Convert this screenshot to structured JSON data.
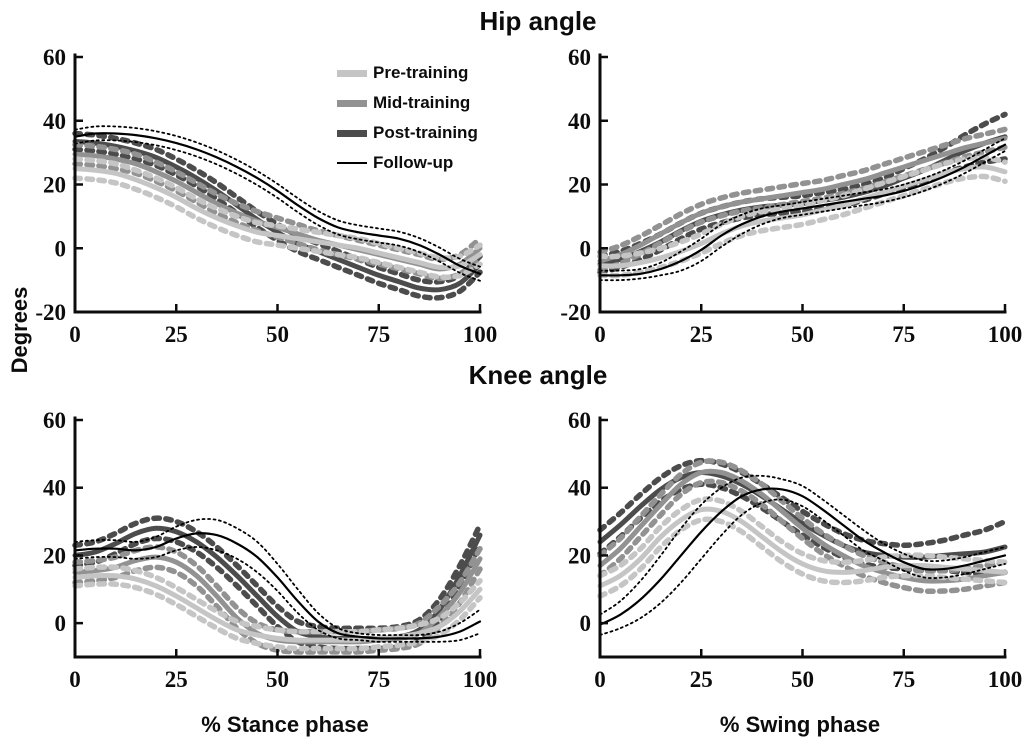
{
  "figure": {
    "hip_title": "Hip angle",
    "knee_title": "Knee angle",
    "ylabel": "Degrees",
    "xlabel_stance": "% Stance phase",
    "xlabel_swing": "% Swing phase",
    "background_color": "#ffffff",
    "axis_color": "#0c0c0c"
  },
  "legend": {
    "items": [
      {
        "label": "Pre-training",
        "color": "#c5c5c5",
        "line_weight": "thick"
      },
      {
        "label": "Mid-training",
        "color": "#929292",
        "line_weight": "thick"
      },
      {
        "label": "Post-training",
        "color": "#4c4c4c",
        "line_weight": "thick"
      },
      {
        "label": "Follow-up",
        "color": "#000000",
        "line_weight": "thin"
      }
    ]
  },
  "chart_data": [
    {
      "id": "hip-stance",
      "type": "line",
      "title": "Hip angle",
      "xlabel": "% Stance phase",
      "ylabel": "Degrees",
      "xlim": [
        0,
        100
      ],
      "ylim": [
        -20,
        60
      ],
      "xticks": [
        0,
        25,
        50,
        75,
        100
      ],
      "yticks": [
        -20,
        0,
        20,
        40,
        60
      ],
      "grid": false,
      "band_meaning": "mean line plus dashed/dotted envelope of plus-minus band degrees",
      "x": [
        0,
        5,
        10,
        15,
        20,
        25,
        30,
        35,
        40,
        45,
        50,
        55,
        60,
        65,
        70,
        75,
        80,
        85,
        90,
        95,
        100
      ],
      "series": [
        {
          "name": "Pre-training",
          "mean": [
            25,
            24.5,
            23.5,
            21.5,
            19,
            16,
            12.5,
            9.5,
            7,
            5,
            4,
            3,
            2,
            1,
            0,
            -1.5,
            -3,
            -4.5,
            -6,
            -5.5,
            -2
          ],
          "band": 3
        },
        {
          "name": "Mid-training",
          "mean": [
            29.5,
            29,
            28,
            26.5,
            24,
            21,
            17.5,
            14,
            11,
            8.5,
            6.5,
            4.5,
            2.5,
            1,
            -0.5,
            -2,
            -3.5,
            -5,
            -6.5,
            -5,
            0
          ],
          "band": 3
        },
        {
          "name": "Post-training",
          "mean": [
            33.5,
            33,
            32,
            30.5,
            28.5,
            25.5,
            22,
            18,
            13.5,
            9,
            5,
            1.5,
            -1,
            -3.5,
            -6,
            -8.5,
            -10.5,
            -12.5,
            -13,
            -11,
            -5
          ],
          "band": 2.5
        },
        {
          "name": "Follow-up",
          "mean": [
            35,
            36,
            36,
            35.5,
            34.5,
            33,
            31,
            28.5,
            25.5,
            22,
            18,
            13.5,
            9.5,
            6.5,
            5,
            4,
            3,
            1,
            -2,
            -5.5,
            -8
          ],
          "band": 2.2
        }
      ]
    },
    {
      "id": "hip-swing",
      "type": "line",
      "title": "Hip angle",
      "xlabel": "% Swing phase",
      "ylabel": "Degrees",
      "xlim": [
        0,
        100
      ],
      "ylim": [
        -20,
        60
      ],
      "xticks": [
        0,
        25,
        50,
        75,
        100
      ],
      "yticks": [
        -20,
        0,
        20,
        40,
        60
      ],
      "grid": false,
      "band_meaning": "mean line plus dashed/dotted envelope of plus-minus band degrees",
      "x": [
        0,
        5,
        10,
        15,
        20,
        25,
        30,
        35,
        40,
        45,
        50,
        55,
        60,
        65,
        70,
        75,
        80,
        85,
        90,
        95,
        100
      ],
      "series": [
        {
          "name": "Pre-training",
          "mean": [
            -5.5,
            -5.5,
            -4.5,
            -3,
            -1,
            1.5,
            4.5,
            7,
            8.5,
            9.5,
            10.5,
            12,
            13.5,
            15.5,
            17.5,
            19.5,
            21.5,
            23.5,
            25,
            25.5,
            24
          ],
          "band": 3
        },
        {
          "name": "Mid-training",
          "mean": [
            -4,
            -2,
            1,
            4.5,
            8,
            11,
            13,
            14.5,
            15.5,
            16.5,
            17.5,
            18.5,
            20,
            21.5,
            23.5,
            25.5,
            27.5,
            29.5,
            31.5,
            33,
            34.5
          ],
          "band": 2.8
        },
        {
          "name": "Post-training",
          "mean": [
            -5,
            -3.5,
            -1,
            2,
            5.5,
            8.5,
            10.5,
            12,
            13,
            13.5,
            14,
            15,
            16,
            17.5,
            19.5,
            22,
            24.5,
            27.5,
            30.5,
            33,
            35
          ],
          "band": [
            2.5,
            2.5,
            2.5,
            2.5,
            2.5,
            2.5,
            2.5,
            2.5,
            2.5,
            2.5,
            2.5,
            2.5,
            2.5,
            2.5,
            2.5,
            3,
            3.5,
            4,
            5,
            6,
            7
          ]
        },
        {
          "name": "Follow-up",
          "mean": [
            -8.5,
            -8.5,
            -8,
            -6.5,
            -4,
            -0.5,
            4,
            7.5,
            10,
            11.5,
            12.5,
            13.5,
            14.5,
            15.5,
            16.5,
            18,
            20,
            22.5,
            25.5,
            29,
            32.5
          ],
          "band": [
            1.5,
            1.5,
            1.5,
            2,
            3,
            3.5,
            3.5,
            3,
            2.5,
            2,
            2,
            2,
            2,
            2,
            2,
            2,
            2,
            2,
            2,
            2,
            2
          ]
        }
      ]
    },
    {
      "id": "knee-stance",
      "type": "line",
      "title": "Knee angle",
      "xlabel": "% Stance phase",
      "ylabel": "Degrees",
      "xlim": [
        0,
        100
      ],
      "ylim": [
        -10,
        60
      ],
      "xticks": [
        0,
        25,
        50,
        75,
        100
      ],
      "yticks": [
        0,
        20,
        40,
        60
      ],
      "grid": false,
      "band_meaning": "mean line plus dashed/dotted envelope of plus-minus band degrees",
      "x": [
        0,
        5,
        10,
        15,
        20,
        25,
        30,
        35,
        40,
        45,
        50,
        55,
        60,
        65,
        70,
        75,
        80,
        85,
        90,
        95,
        100
      ],
      "series": [
        {
          "name": "Pre-training",
          "mean": [
            13.5,
            14,
            14,
            13,
            11,
            8,
            4.5,
            1,
            -2,
            -3.5,
            -4.5,
            -5,
            -5,
            -5,
            -5,
            -4.5,
            -4,
            -3,
            -1,
            3.5,
            10
          ],
          "band": 2.5
        },
        {
          "name": "Mid-training",
          "mean": [
            15,
            15.5,
            16.5,
            18.5,
            19.5,
            18,
            14,
            8,
            1.5,
            -3,
            -5,
            -5.5,
            -5.5,
            -5.5,
            -5.5,
            -5,
            -4.5,
            -3,
            2,
            9,
            19
          ],
          "band": 3
        },
        {
          "name": "Post-training",
          "mean": [
            20,
            21,
            23.5,
            26.5,
            28,
            27,
            24,
            19.5,
            14,
            8,
            2,
            -2.5,
            -4,
            -4.5,
            -4.5,
            -4.5,
            -4,
            -2,
            4,
            14,
            26
          ],
          "band": 3
        },
        {
          "name": "Follow-up",
          "mean": [
            21.5,
            22,
            22,
            21.5,
            22.5,
            25,
            26.5,
            26,
            23.5,
            19.5,
            13.5,
            6.5,
            0.5,
            -3,
            -4,
            -4.5,
            -4.5,
            -4.5,
            -4,
            -2.5,
            0.5
          ],
          "band": [
            2.5,
            2.5,
            2.5,
            2.5,
            3,
            3.5,
            4,
            4.5,
            4.5,
            4.5,
            4,
            3.5,
            2.5,
            1.5,
            1,
            1,
            1,
            1,
            1.5,
            2.5,
            3.5
          ]
        }
      ]
    },
    {
      "id": "knee-swing",
      "type": "line",
      "title": "Knee angle",
      "xlabel": "% Swing phase",
      "ylabel": "Degrees",
      "xlim": [
        0,
        100
      ],
      "ylim": [
        -10,
        60
      ],
      "xticks": [
        0,
        25,
        50,
        75,
        100
      ],
      "yticks": [
        0,
        20,
        40,
        60
      ],
      "grid": false,
      "band_meaning": "mean line plus dashed/dotted envelope of plus-minus band degrees",
      "x": [
        0,
        5,
        10,
        15,
        20,
        25,
        30,
        35,
        40,
        45,
        50,
        55,
        60,
        65,
        70,
        75,
        80,
        85,
        90,
        95,
        100
      ],
      "series": [
        {
          "name": "Pre-training",
          "mean": [
            11,
            14,
            19,
            25.5,
            30.5,
            33.5,
            33,
            30,
            25.5,
            21,
            17.5,
            15.5,
            15,
            15.5,
            16.5,
            17,
            17,
            16.5,
            16,
            15.5,
            15
          ],
          "band": 3
        },
        {
          "name": "Mid-training",
          "mean": [
            17,
            22,
            28.5,
            35,
            41,
            44.5,
            44.5,
            42,
            38,
            33,
            28,
            23.5,
            20,
            17,
            15,
            13.5,
            12.5,
            12.5,
            13,
            14,
            15
          ],
          "band": 3
        },
        {
          "name": "Post-training",
          "mean": [
            24,
            29,
            34.5,
            39.5,
            43,
            44.5,
            43.5,
            41,
            37.5,
            33.5,
            29.5,
            26,
            23,
            21,
            20,
            19.5,
            19.5,
            20,
            20.5,
            21,
            22.5
          ],
          "band": [
            3.5,
            3.5,
            3.5,
            3.5,
            3.5,
            3.5,
            3.5,
            3.5,
            3.5,
            3.5,
            3.5,
            3.5,
            3.5,
            3.5,
            3.5,
            3.5,
            4,
            4.5,
            5.5,
            6.5,
            7.5
          ]
        },
        {
          "name": "Follow-up",
          "mean": [
            -0.5,
            2.5,
            7,
            13,
            20,
            27,
            33,
            37.5,
            39.5,
            39.5,
            37.5,
            33.5,
            29,
            24.5,
            21,
            18,
            16,
            16,
            17,
            18.5,
            20
          ],
          "band": [
            3,
            4,
            5.5,
            7,
            8,
            8,
            7,
            5.5,
            4,
            3,
            3,
            3,
            3,
            3,
            2.5,
            2.5,
            2.5,
            2.5,
            2.5,
            2.5,
            2.5
          ]
        }
      ]
    }
  ]
}
